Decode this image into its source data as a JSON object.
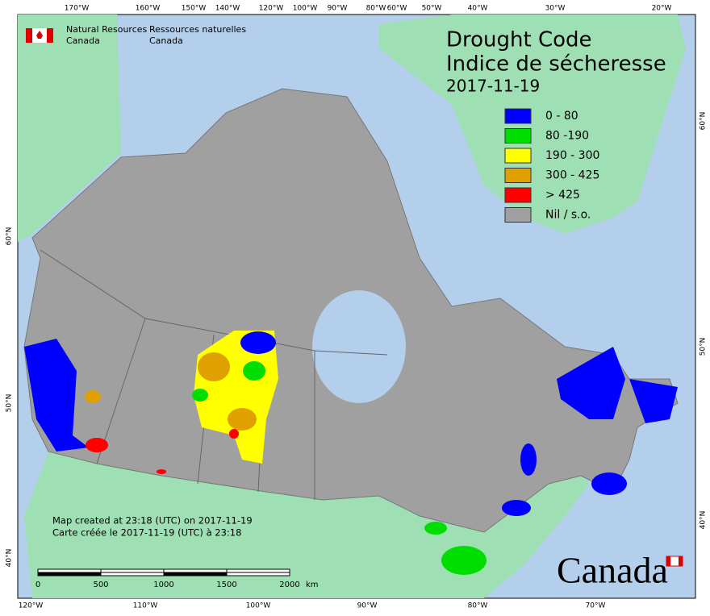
{
  "agency": {
    "en_1": "Natural Resources",
    "en_2": "Canada",
    "fr_1": "Ressources naturelles",
    "fr_2": "Canada"
  },
  "title": {
    "en": "Drought Code",
    "fr": "Indice de sécheresse",
    "date": "2017-11-19"
  },
  "legend": {
    "items": [
      {
        "label": "0 - 80",
        "color": "#0000ff"
      },
      {
        "label": "80 -190",
        "color": "#00dd00"
      },
      {
        "label": "190 - 300",
        "color": "#ffff00"
      },
      {
        "label": "300 - 425",
        "color": "#e0a000"
      },
      {
        "label": "> 425",
        "color": "#ff0000"
      },
      {
        "label": "Nil / s.o.",
        "color": "#a0a0a0"
      }
    ]
  },
  "graticule": {
    "top": [
      "170°W",
      "160°W",
      "150°W",
      "140°W",
      "120°W",
      "100°W",
      "90°W",
      "80°W",
      "60°W",
      "50°W",
      "40°W",
      "30°W",
      "20°W"
    ],
    "bottom": [
      "120°W",
      "110°W",
      "100°W",
      "90°W",
      "80°W",
      "70°W"
    ],
    "left": [
      "60°N",
      "50°N",
      "40°N"
    ],
    "right": [
      "60°N",
      "50°N",
      "40°N"
    ]
  },
  "notes": [
    "Map created at 23:18 (UTC) on 2017-11-19",
    "Carte créée le 2017-11-19 (UTC) à 23:18"
  ],
  "scale_bar": [
    "0",
    "500",
    "1000",
    "1500",
    "2000",
    "km"
  ],
  "wordmark": "Canada"
}
